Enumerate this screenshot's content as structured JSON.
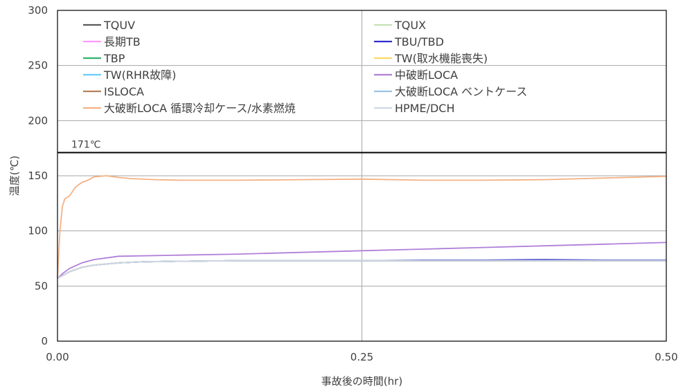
{
  "chart_data": {
    "type": "line",
    "xlabel": "事故後の時間(hr)",
    "ylabel": "温度(℃)",
    "xlim": [
      0,
      0.5
    ],
    "ylim": [
      0,
      300
    ],
    "x_ticks": [
      {
        "value": 0,
        "label": "0.00"
      },
      {
        "value": 0.25,
        "label": "0.25"
      },
      {
        "value": 0.5,
        "label": "0.50"
      }
    ],
    "y_ticks": [
      {
        "value": 0,
        "label": "0"
      },
      {
        "value": 50,
        "label": "50"
      },
      {
        "value": 100,
        "label": "100"
      },
      {
        "value": 150,
        "label": "150"
      },
      {
        "value": 200,
        "label": "200"
      },
      {
        "value": 250,
        "label": "250"
      },
      {
        "value": 300,
        "label": "300"
      }
    ],
    "grid": true,
    "legend_position": "top",
    "reference_line": {
      "y": 171,
      "label": "171℃",
      "color": "#000000"
    },
    "series": [
      {
        "name": "TQUV",
        "color": "#595959",
        "points": [
          [
            0,
            57
          ],
          [
            0.01,
            63
          ],
          [
            0.02,
            67
          ],
          [
            0.03,
            69
          ],
          [
            0.05,
            71
          ],
          [
            0.07,
            72
          ],
          [
            0.1,
            72.5
          ],
          [
            0.15,
            73
          ],
          [
            0.2,
            73
          ],
          [
            0.25,
            73
          ],
          [
            0.3,
            73
          ],
          [
            0.35,
            73
          ],
          [
            0.4,
            73
          ],
          [
            0.45,
            73
          ],
          [
            0.5,
            73
          ]
        ]
      },
      {
        "name": "TQUX",
        "color": "#c5e0b4",
        "points": [
          [
            0,
            57
          ],
          [
            0.01,
            63
          ],
          [
            0.02,
            67
          ],
          [
            0.03,
            69
          ],
          [
            0.05,
            71
          ],
          [
            0.07,
            72
          ],
          [
            0.1,
            72.5
          ],
          [
            0.15,
            73
          ],
          [
            0.2,
            73
          ],
          [
            0.25,
            73
          ],
          [
            0.3,
            73
          ],
          [
            0.35,
            73
          ],
          [
            0.4,
            73
          ],
          [
            0.45,
            73
          ],
          [
            0.5,
            73
          ]
        ]
      },
      {
        "name": "長期TB",
        "color": "#ff99ff",
        "points": [
          [
            0,
            57
          ],
          [
            0.01,
            63
          ],
          [
            0.02,
            67
          ],
          [
            0.03,
            69
          ],
          [
            0.05,
            71
          ],
          [
            0.07,
            72
          ],
          [
            0.1,
            72.5
          ],
          [
            0.15,
            73
          ],
          [
            0.2,
            73
          ],
          [
            0.25,
            73
          ],
          [
            0.3,
            73
          ],
          [
            0.35,
            73
          ],
          [
            0.4,
            73
          ],
          [
            0.45,
            73
          ],
          [
            0.5,
            73
          ]
        ]
      },
      {
        "name": "TBU/TBD",
        "color": "#2e2ecf",
        "points": [
          [
            0,
            57
          ],
          [
            0.01,
            63
          ],
          [
            0.02,
            67
          ],
          [
            0.03,
            69
          ],
          [
            0.05,
            71
          ],
          [
            0.07,
            72
          ],
          [
            0.1,
            72.5
          ],
          [
            0.15,
            73
          ],
          [
            0.2,
            73
          ],
          [
            0.25,
            73
          ],
          [
            0.3,
            73.5
          ],
          [
            0.35,
            73.5
          ],
          [
            0.4,
            74
          ],
          [
            0.45,
            73.5
          ],
          [
            0.5,
            73.5
          ]
        ]
      },
      {
        "name": "TBP",
        "color": "#33b36b",
        "points": [
          [
            0,
            57
          ],
          [
            0.01,
            63
          ],
          [
            0.02,
            67
          ],
          [
            0.03,
            69
          ],
          [
            0.05,
            71
          ],
          [
            0.07,
            72
          ],
          [
            0.1,
            72.5
          ],
          [
            0.15,
            73
          ],
          [
            0.2,
            73
          ],
          [
            0.25,
            73
          ],
          [
            0.3,
            73
          ],
          [
            0.35,
            73
          ],
          [
            0.4,
            73
          ],
          [
            0.45,
            73
          ],
          [
            0.5,
            73
          ]
        ]
      },
      {
        "name": "TW(取水機能喪失)",
        "color": "#ffd966",
        "points": [
          [
            0,
            57
          ],
          [
            0.01,
            63
          ],
          [
            0.02,
            67
          ],
          [
            0.03,
            69
          ],
          [
            0.05,
            71
          ],
          [
            0.07,
            72
          ],
          [
            0.1,
            72.5
          ],
          [
            0.15,
            73
          ],
          [
            0.2,
            73
          ],
          [
            0.25,
            73
          ],
          [
            0.3,
            73
          ],
          [
            0.35,
            73
          ],
          [
            0.4,
            73
          ],
          [
            0.45,
            73
          ],
          [
            0.5,
            73
          ]
        ]
      },
      {
        "name": "TW(RHR故障)",
        "color": "#66ccff",
        "points": [
          [
            0,
            57
          ],
          [
            0.01,
            63
          ],
          [
            0.02,
            67
          ],
          [
            0.03,
            69
          ],
          [
            0.05,
            71
          ],
          [
            0.07,
            72
          ],
          [
            0.1,
            72.5
          ],
          [
            0.15,
            73
          ],
          [
            0.2,
            73
          ],
          [
            0.25,
            73
          ],
          [
            0.3,
            73
          ],
          [
            0.35,
            73
          ],
          [
            0.4,
            73
          ],
          [
            0.45,
            73
          ],
          [
            0.5,
            73
          ]
        ]
      },
      {
        "name": "中破断LOCA",
        "color": "#b07fd9",
        "points": [
          [
            0,
            57
          ],
          [
            0.005,
            62
          ],
          [
            0.01,
            66
          ],
          [
            0.02,
            71
          ],
          [
            0.03,
            74
          ],
          [
            0.05,
            77
          ],
          [
            0.1,
            78
          ],
          [
            0.15,
            79
          ],
          [
            0.2,
            80.5
          ],
          [
            0.25,
            82
          ],
          [
            0.3,
            83.5
          ],
          [
            0.35,
            85
          ],
          [
            0.4,
            86.5
          ],
          [
            0.45,
            88
          ],
          [
            0.5,
            89.5
          ]
        ]
      },
      {
        "name": "ISLOCA",
        "color": "#b5805a",
        "points": [
          [
            0,
            57
          ],
          [
            0.01,
            63
          ],
          [
            0.02,
            67
          ],
          [
            0.03,
            69
          ],
          [
            0.05,
            71
          ],
          [
            0.07,
            72
          ],
          [
            0.1,
            72.5
          ],
          [
            0.15,
            73
          ],
          [
            0.2,
            73
          ],
          [
            0.25,
            73
          ],
          [
            0.3,
            73
          ],
          [
            0.35,
            73
          ],
          [
            0.4,
            73
          ],
          [
            0.45,
            73
          ],
          [
            0.5,
            73
          ]
        ]
      },
      {
        "name": "大破断LOCA ベントケース",
        "color": "#9dc3e6",
        "points": [
          [
            0,
            57
          ],
          [
            0.01,
            63
          ],
          [
            0.02,
            67
          ],
          [
            0.03,
            69
          ],
          [
            0.05,
            71
          ],
          [
            0.07,
            72
          ],
          [
            0.1,
            72.5
          ],
          [
            0.15,
            73
          ],
          [
            0.2,
            73
          ],
          [
            0.25,
            73
          ],
          [
            0.3,
            73
          ],
          [
            0.35,
            73
          ],
          [
            0.4,
            73
          ],
          [
            0.45,
            73
          ],
          [
            0.5,
            73
          ]
        ]
      },
      {
        "name": "大破断LOCA 循環冷却ケース/水素燃焼",
        "color": "#f4b183",
        "points": [
          [
            0,
            57
          ],
          [
            0.002,
            100
          ],
          [
            0.004,
            122
          ],
          [
            0.006,
            129
          ],
          [
            0.01,
            132
          ],
          [
            0.015,
            140
          ],
          [
            0.02,
            144
          ],
          [
            0.025,
            146
          ],
          [
            0.03,
            149
          ],
          [
            0.04,
            150
          ],
          [
            0.05,
            148.5
          ],
          [
            0.06,
            147.5
          ],
          [
            0.08,
            146.5
          ],
          [
            0.1,
            146
          ],
          [
            0.15,
            146
          ],
          [
            0.2,
            146.5
          ],
          [
            0.25,
            147
          ],
          [
            0.3,
            146
          ],
          [
            0.35,
            146
          ],
          [
            0.4,
            146.5
          ],
          [
            0.45,
            148
          ],
          [
            0.5,
            149.5
          ]
        ]
      },
      {
        "name": "HPME/DCH",
        "color": "#d0d7e5",
        "points": [
          [
            0,
            57
          ],
          [
            0.01,
            63
          ],
          [
            0.02,
            67
          ],
          [
            0.03,
            69
          ],
          [
            0.05,
            71
          ],
          [
            0.07,
            72
          ],
          [
            0.1,
            72.5
          ],
          [
            0.15,
            73
          ],
          [
            0.2,
            73
          ],
          [
            0.25,
            73
          ],
          [
            0.3,
            73
          ],
          [
            0.35,
            73
          ],
          [
            0.4,
            73
          ],
          [
            0.45,
            73
          ],
          [
            0.5,
            73
          ]
        ]
      }
    ]
  }
}
